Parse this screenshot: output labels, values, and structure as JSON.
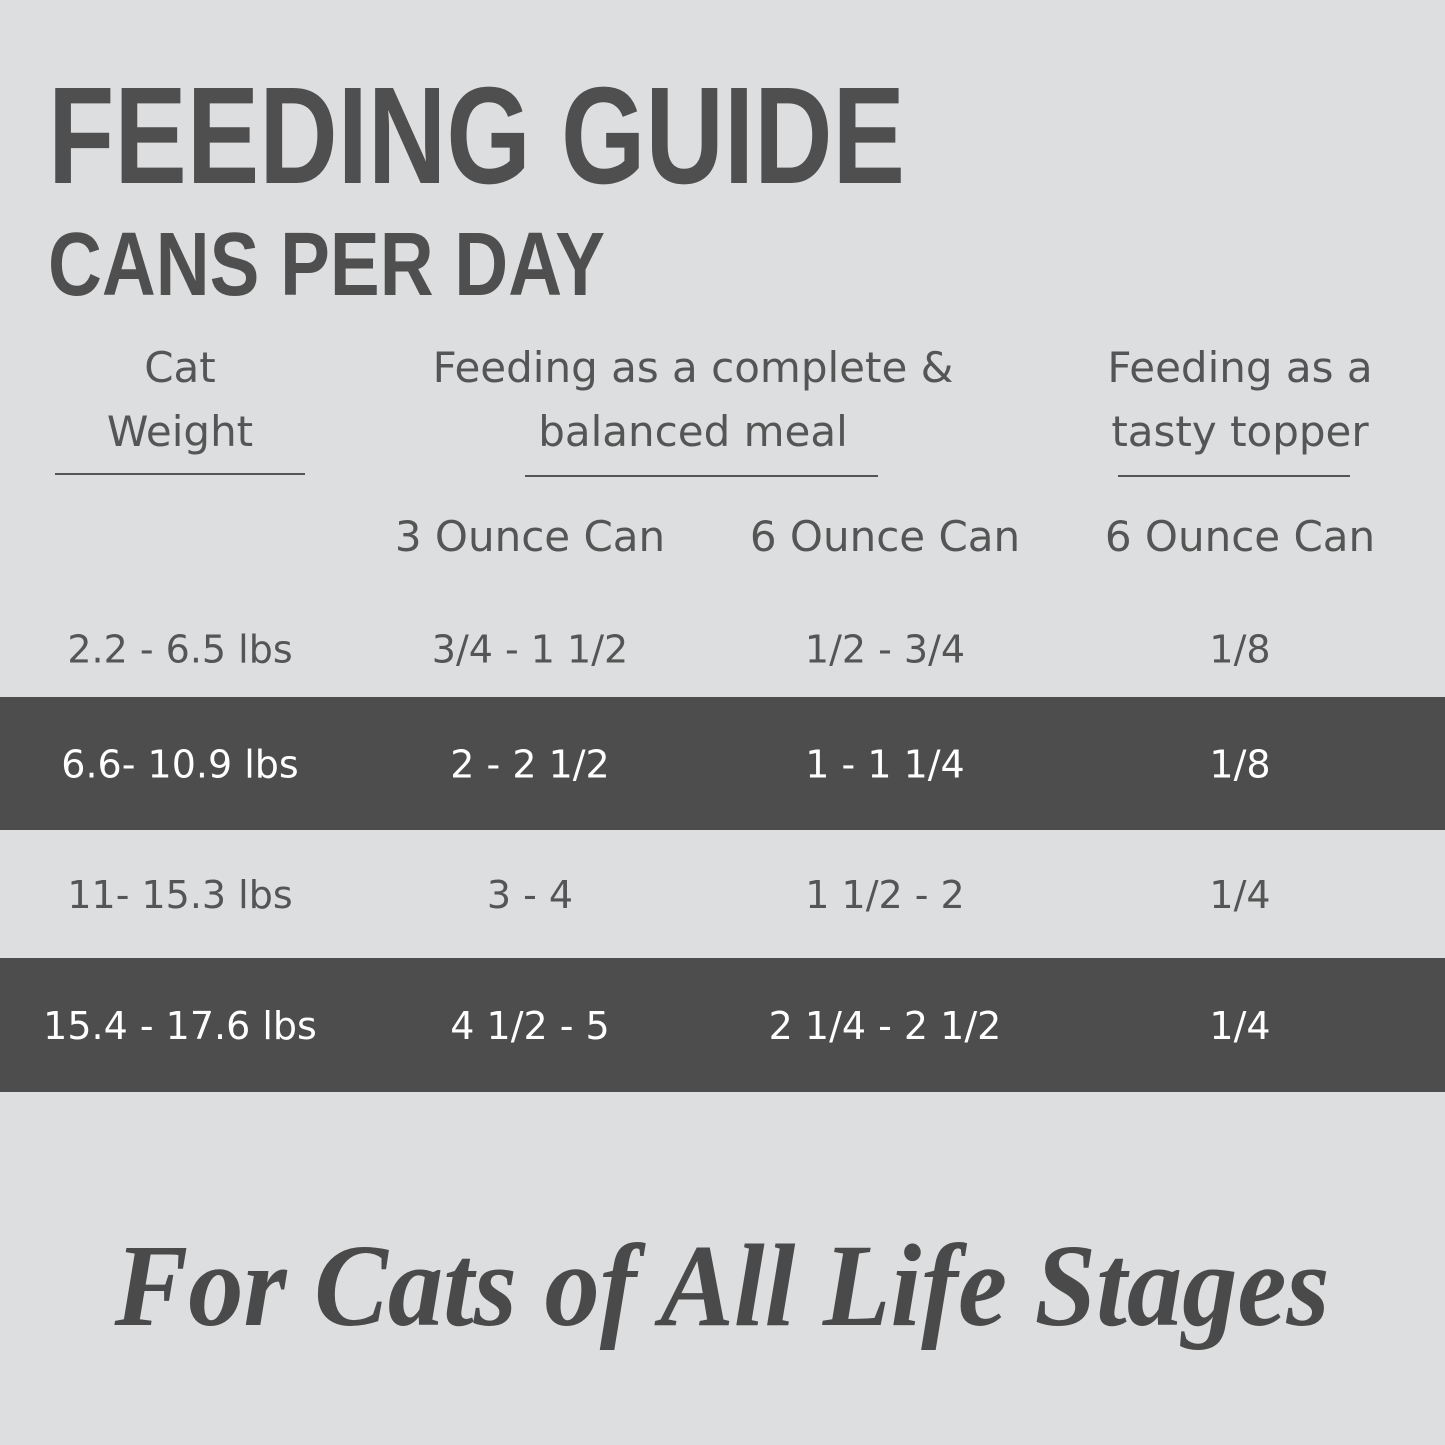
{
  "header": {
    "title": "FEEDING GUIDE",
    "subtitle": "CANS PER DAY"
  },
  "table": {
    "group_headers": [
      [
        "Cat",
        "Weight"
      ],
      [
        "Feeding as a complete &",
        "balanced meal"
      ],
      [
        "Feeding as a",
        "tasty topper"
      ]
    ],
    "columns": [
      "3 Ounce Can",
      "6 Ounce Can",
      "6 Ounce Can"
    ],
    "rows": [
      [
        "2.2 - 6.5 lbs",
        "3/4 - 1 1/2",
        "1/2 - 3/4",
        "1/8"
      ],
      [
        "6.6- 10.9 lbs",
        "2 - 2 1/2",
        "1 - 1 1/4",
        "1/8"
      ],
      [
        "11- 15.3 lbs",
        "3 - 4",
        "1 1/2 - 2",
        "1/4"
      ],
      [
        "15.4 - 17.6 lbs",
        "4 1/2 - 5",
        "2 1/4 - 2 1/2",
        "1/4"
      ]
    ]
  },
  "footer": {
    "tagline": "For Cats of All Life Stages"
  }
}
